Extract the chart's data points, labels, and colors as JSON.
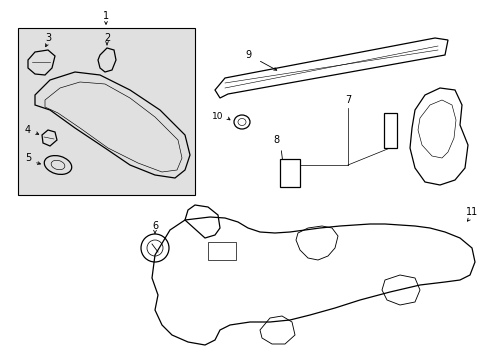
{
  "bg_color": "#ffffff",
  "box_bg": "#e0e0e0",
  "lc": "#000000",
  "tc": "#000000",
  "figsize": [
    4.89,
    3.6
  ],
  "dpi": 100,
  "xlim": [
    0,
    489
  ],
  "ylim": [
    0,
    360
  ]
}
